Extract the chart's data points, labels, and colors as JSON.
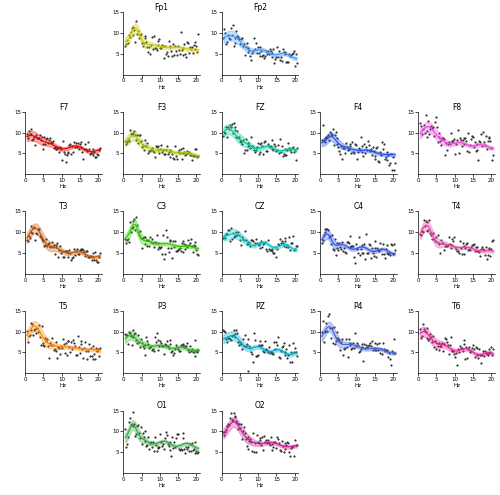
{
  "channels": [
    "Fp1",
    "Fp2",
    "F7",
    "F3",
    "FZ",
    "F4",
    "F8",
    "T3",
    "C3",
    "CZ",
    "C4",
    "T4",
    "T5",
    "P3",
    "PZ",
    "P4",
    "T6",
    "O1",
    "O2"
  ],
  "line_colors": {
    "Fp1": "#cccc00",
    "Fp2": "#4499ff",
    "F7": "#ee0000",
    "F3": "#aacc00",
    "FZ": "#00cc99",
    "F4": "#2255ee",
    "F8": "#ee44dd",
    "T3": "#cc5500",
    "C3": "#33cc00",
    "CZ": "#00cccc",
    "C4": "#3355ee",
    "T4": "#ee44aa",
    "T5": "#ff8800",
    "P3": "#33bb22",
    "PZ": "#00aacc",
    "P4": "#4466dd",
    "T6": "#ee2299",
    "O1": "#33aa44",
    "O2": "#cc2299"
  },
  "rows": [
    [
      "Fp1",
      "Fp2"
    ],
    [
      "F7",
      "F3",
      "FZ",
      "F4",
      "F8"
    ],
    [
      "T3",
      "C3",
      "CZ",
      "C4",
      "T4"
    ],
    [
      "T5",
      "P3",
      "PZ",
      "P4",
      "T6"
    ],
    [
      "O1",
      "O2"
    ]
  ],
  "shade_alpha": 0.3,
  "dot_color": "#333333",
  "dot_size": 2.5,
  "xlim": [
    0,
    21
  ],
  "xticks": [
    0,
    5,
    10,
    15,
    20
  ],
  "ylim": [
    0,
    15
  ],
  "yticks": [
    5,
    10,
    15
  ],
  "xlabel": "Hz",
  "seed": 12345,
  "n_pts": 80,
  "peak_freq": 2.5,
  "peak_amp": 3.0,
  "base_level": 7.5,
  "decay": 0.12
}
